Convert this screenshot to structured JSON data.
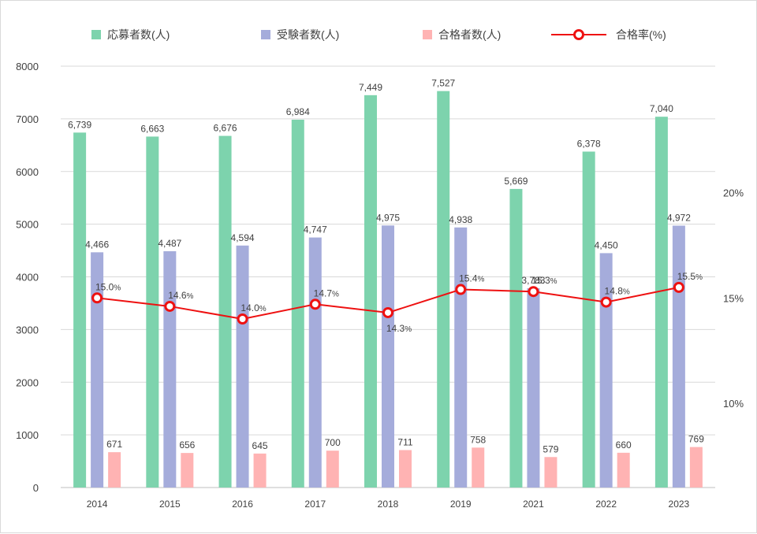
{
  "chart_data": {
    "type": "bar",
    "title": "",
    "categories": [
      "2014",
      "2015",
      "2016",
      "2017",
      "2018",
      "2019",
      "2021",
      "2022",
      "2023"
    ],
    "series": [
      {
        "name": "応募者数(人)",
        "type": "bar",
        "axis": "left",
        "color": "#7dd3ad",
        "values": [
          6739,
          6663,
          6676,
          6984,
          7449,
          7527,
          5669,
          6378,
          7040
        ],
        "labels": [
          "6,739",
          "6,663",
          "6,676",
          "6,984",
          "7,449",
          "7,527",
          "5,669",
          "6,378",
          "7,040"
        ]
      },
      {
        "name": "受験者数(人)",
        "type": "bar",
        "axis": "left",
        "color": "#a5acdb",
        "values": [
          4466,
          4487,
          4594,
          4747,
          4975,
          4938,
          3783,
          4450,
          4972
        ],
        "labels": [
          "4,466",
          "4,487",
          "4,594",
          "4,747",
          "4,975",
          "4,938",
          "3,783",
          "4,450",
          "4,972"
        ]
      },
      {
        "name": "合格者数(人)",
        "type": "bar",
        "axis": "left",
        "color": "#ffb3b3",
        "values": [
          671,
          656,
          645,
          700,
          711,
          758,
          579,
          660,
          769
        ],
        "labels": [
          "671",
          "656",
          "645",
          "700",
          "711",
          "758",
          "579",
          "660",
          "769"
        ]
      },
      {
        "name": "合格率(%)",
        "type": "line",
        "axis": "right",
        "color": "#ee1111",
        "values": [
          15.0,
          14.6,
          14.0,
          14.7,
          14.3,
          15.4,
          15.3,
          14.8,
          15.5
        ],
        "labels": [
          "15.0",
          "14.6",
          "14.0",
          "14.7",
          "14.3",
          "15.4",
          "15.3",
          "14.8",
          "15.5"
        ],
        "label_unit": "%"
      }
    ],
    "left_axis": {
      "ylim": [
        0,
        8000
      ],
      "ticks": [
        "0",
        "1000",
        "2000",
        "3000",
        "4000",
        "5000",
        "6000",
        "7000",
        "8000"
      ]
    },
    "right_axis": {
      "ylim": [
        6,
        26
      ],
      "ticks": [
        "10%",
        "15%",
        "20%"
      ],
      "tick_values": [
        10,
        15,
        20
      ]
    },
    "grid": true,
    "legend_position": "top"
  }
}
